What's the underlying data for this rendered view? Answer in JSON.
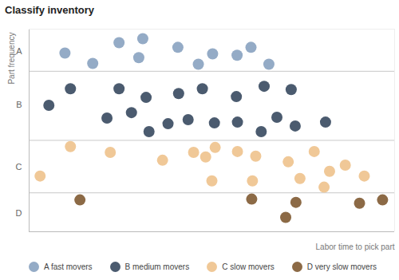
{
  "chart_data": {
    "type": "scatter",
    "title": "Classify inventory",
    "x_label": "Labor time to pick part",
    "y_label": "Part frequency",
    "xlim": [
      0,
      100
    ],
    "ylim": [
      0,
      100
    ],
    "yticks": [
      {
        "value": 89,
        "label": "A"
      },
      {
        "value": 62.7,
        "label": "B"
      },
      {
        "value": 31.8,
        "label": "C"
      },
      {
        "value": 9,
        "label": "D"
      }
    ],
    "band_edges": [
      19.2,
      45.1,
      79.2
    ],
    "tick_labels": "y",
    "legend": "bottom",
    "series": [
      {
        "name": "A fast movers",
        "color": "#94abc6",
        "x": [
          9.8,
          17.4,
          24.6,
          31.1,
          30.0,
          40.7,
          46.3,
          50.2,
          56.9,
          60.7,
          65.6
        ],
        "y": [
          88.2,
          83.1,
          93.3,
          95.3,
          85.9,
          91.0,
          82.7,
          87.8,
          87.1,
          91.0,
          82.7
        ]
      },
      {
        "name": "B medium movers",
        "color": "#4b5b6f",
        "x": [
          5.4,
          11.3,
          21.3,
          24.6,
          28.0,
          32.0,
          32.8,
          38.0,
          40.9,
          43.5,
          47.4,
          50.7,
          56.7,
          57.0,
          63.5,
          64.3,
          67.8,
          71.7,
          72.8,
          81.1
        ],
        "y": [
          62.4,
          70.6,
          56.1,
          70.6,
          58.8,
          66.3,
          49.4,
          53.3,
          68.2,
          55.3,
          70.6,
          53.7,
          66.7,
          54.1,
          49.4,
          71.8,
          56.5,
          70.2,
          52.2,
          54.1
        ]
      },
      {
        "name": "C slow movers",
        "color": "#f0c897",
        "x": [
          3.0,
          11.3,
          22.2,
          36.5,
          45.0,
          48.3,
          50.9,
          50.0,
          57.0,
          62.0,
          61.1,
          70.9,
          74.1,
          78.0,
          82.2,
          80.7,
          86.5,
          91.7
        ],
        "y": [
          27.5,
          42.0,
          39.2,
          35.3,
          39.2,
          36.9,
          41.6,
          25.1,
          39.6,
          37.3,
          25.1,
          34.5,
          26.3,
          39.6,
          29.8,
          22.0,
          32.9,
          27.5
        ]
      },
      {
        "name": "D very slow movers",
        "color": "#8c6a46",
        "x": [
          13.9,
          60.9,
          70.2,
          73.0,
          90.4,
          96.7
        ],
        "y": [
          15.7,
          16.1,
          7.1,
          14.5,
          14.1,
          15.7
        ]
      }
    ]
  }
}
